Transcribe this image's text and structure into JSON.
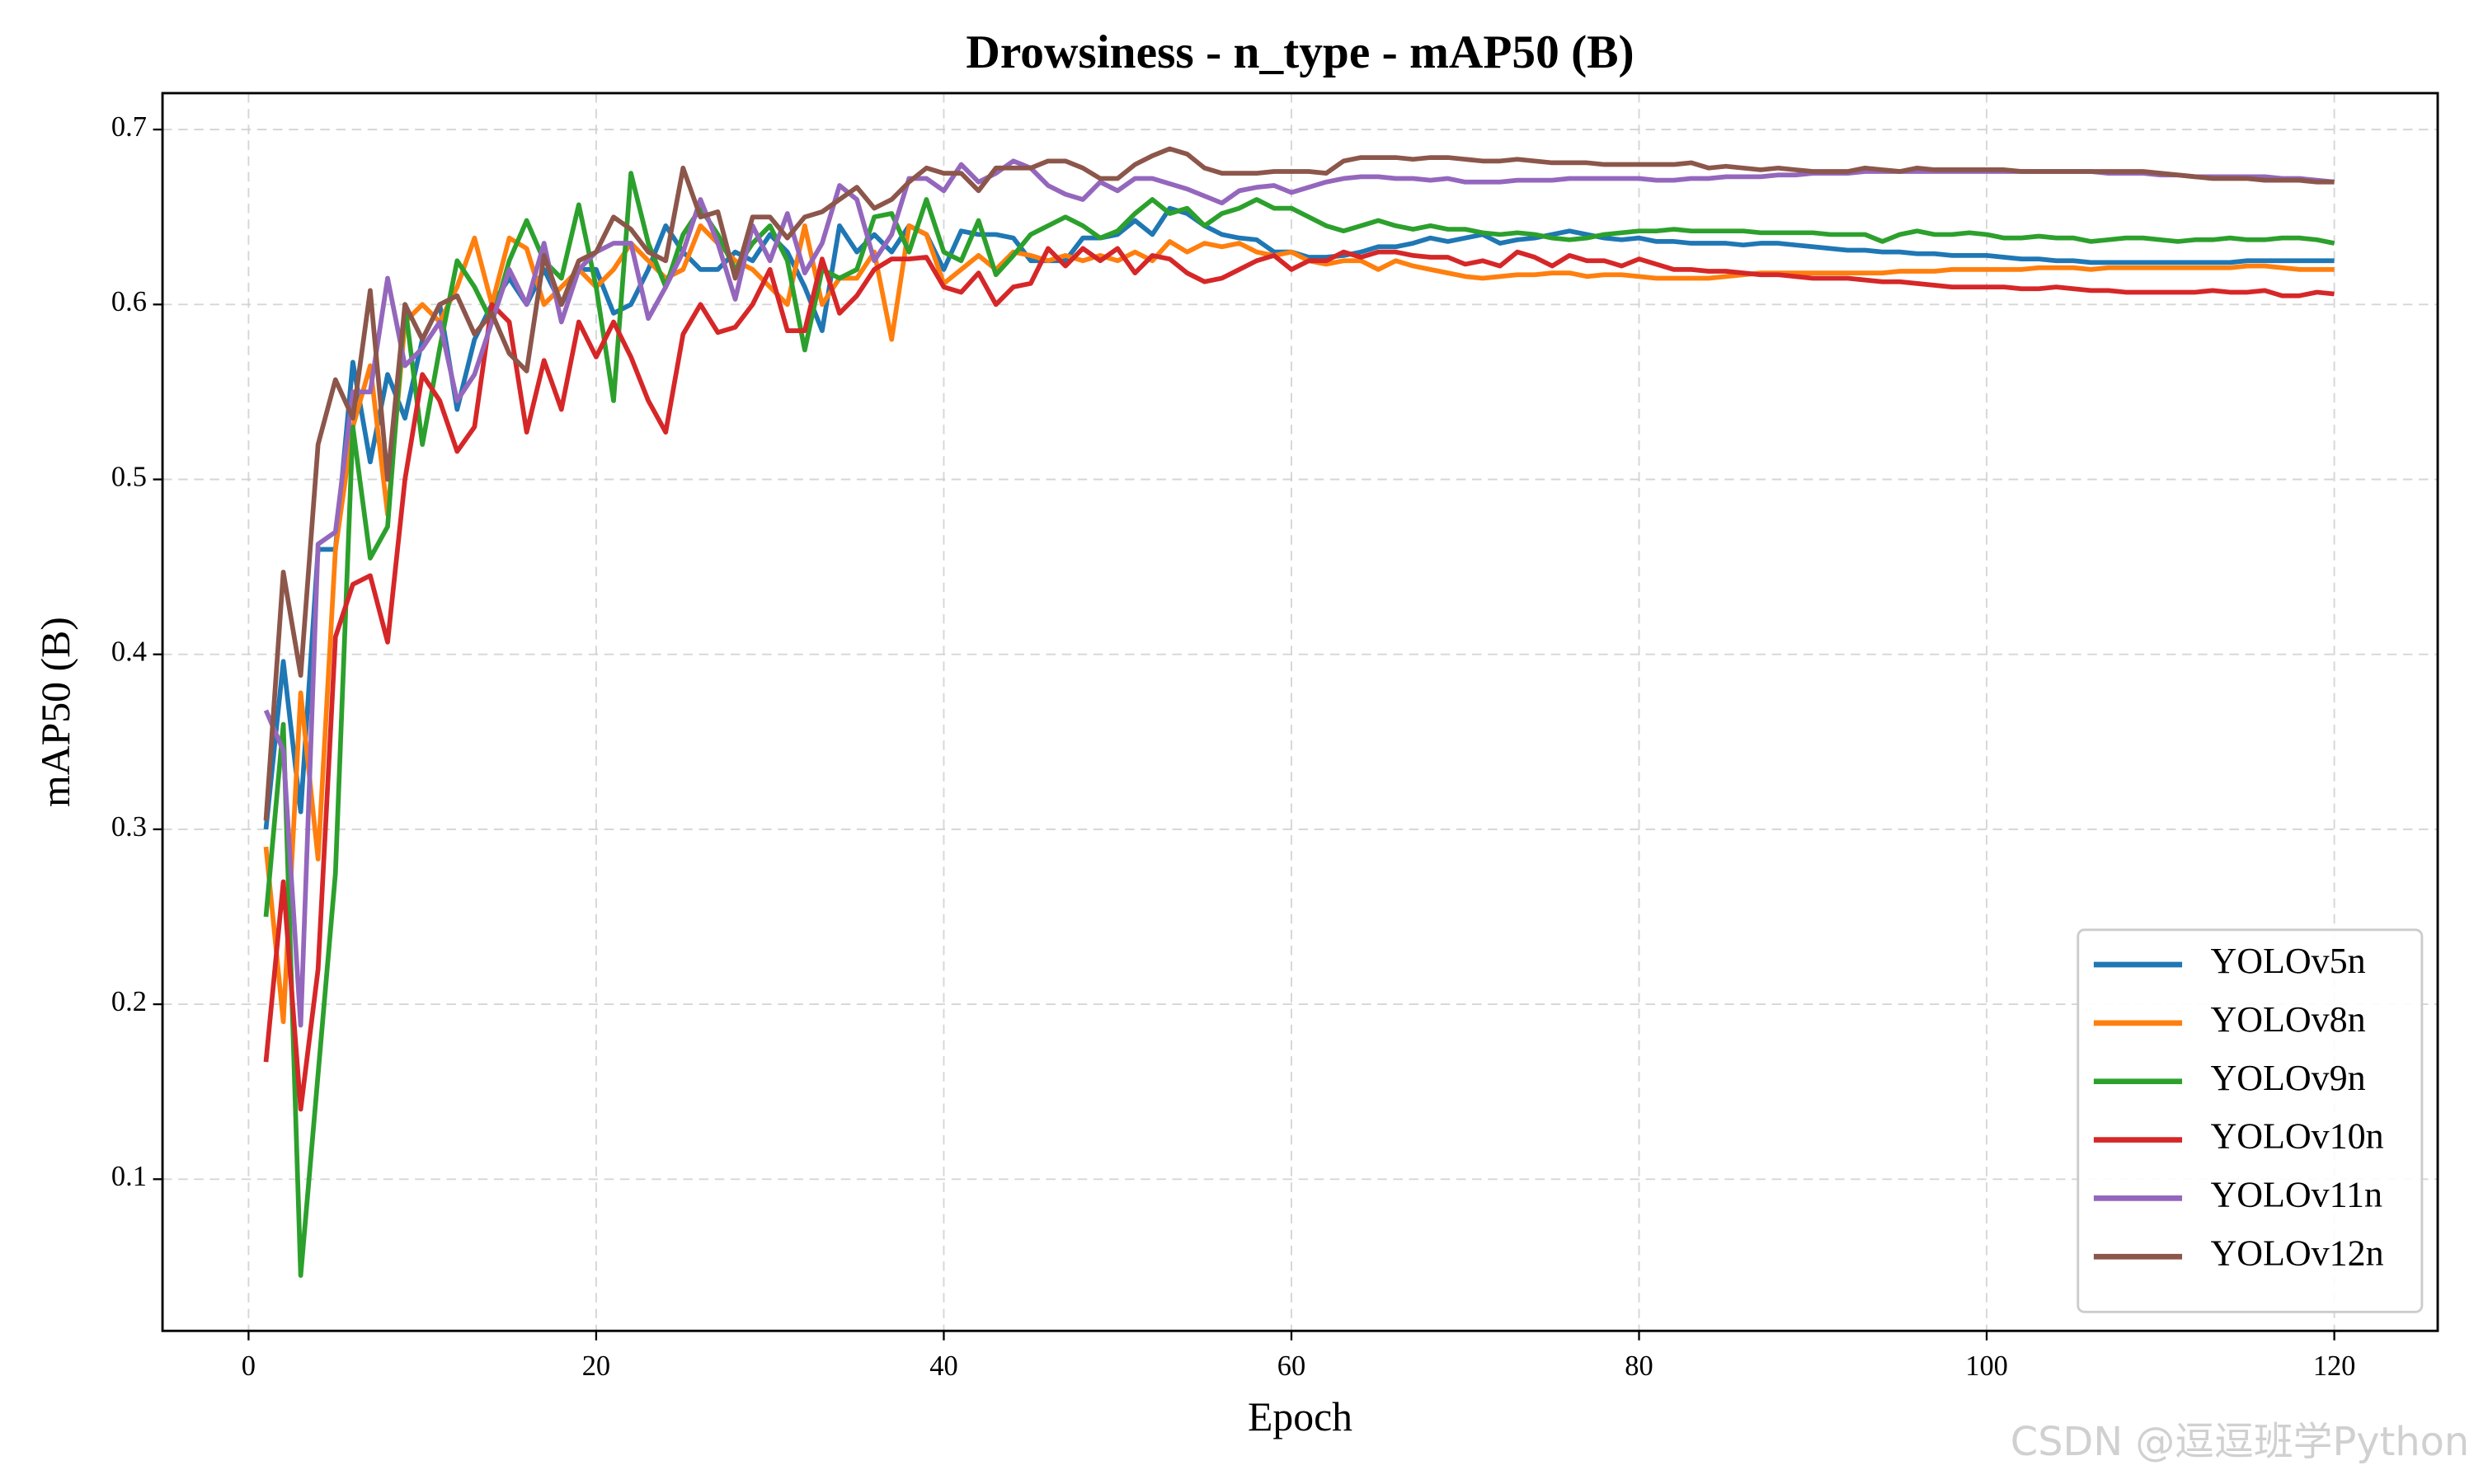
{
  "chart_data": {
    "type": "line",
    "title": "Drowsiness - n_type - mAP50 (B)",
    "x_label": "Epoch",
    "y_label": "mAP50 (B)",
    "watermark": "CSDN @逗逗班学Python",
    "grid": true,
    "legend": "lower right",
    "xlim": [
      -4.95,
      125.95
    ],
    "ylim": [
      0.0133,
      0.7208
    ],
    "xticks": [
      0,
      20,
      40,
      60,
      80,
      100,
      120
    ],
    "yticks": [
      0.1,
      0.2,
      0.3,
      0.4,
      0.5,
      0.6,
      0.7
    ],
    "x": [
      1,
      2,
      3,
      4,
      5,
      6,
      7,
      8,
      9,
      10,
      11,
      12,
      13,
      14,
      15,
      16,
      17,
      18,
      19,
      20,
      21,
      22,
      23,
      24,
      25,
      26,
      27,
      28,
      29,
      30,
      31,
      32,
      33,
      34,
      35,
      36,
      37,
      38,
      39,
      40,
      41,
      42,
      43,
      44,
      45,
      46,
      47,
      48,
      49,
      50,
      51,
      52,
      53,
      54,
      55,
      56,
      57,
      58,
      59,
      60,
      61,
      62,
      63,
      64,
      65,
      66,
      67,
      68,
      69,
      70,
      71,
      72,
      73,
      74,
      75,
      76,
      77,
      78,
      79,
      80,
      81,
      82,
      83,
      84,
      85,
      86,
      87,
      88,
      89,
      90,
      91,
      92,
      93,
      94,
      95,
      96,
      97,
      98,
      99,
      100,
      101,
      102,
      103,
      104,
      105,
      106,
      107,
      108,
      109,
      110,
      111,
      112,
      113,
      114,
      115,
      116,
      117,
      118,
      119,
      120
    ],
    "series": [
      {
        "name": "YOLOv5n",
        "color": "#1f77b4",
        "values": [
          0.3,
          0.396,
          0.31,
          0.46,
          0.46,
          0.567,
          0.51,
          0.56,
          0.535,
          0.58,
          0.6,
          0.54,
          0.58,
          0.6,
          0.615,
          0.6,
          0.62,
          0.6,
          0.62,
          0.62,
          0.595,
          0.6,
          0.62,
          0.645,
          0.63,
          0.62,
          0.62,
          0.63,
          0.625,
          0.64,
          0.63,
          0.61,
          0.585,
          0.645,
          0.63,
          0.64,
          0.63,
          0.645,
          0.64,
          0.62,
          0.642,
          0.64,
          0.64,
          0.638,
          0.625,
          0.625,
          0.625,
          0.638,
          0.638,
          0.64,
          0.648,
          0.64,
          0.655,
          0.652,
          0.645,
          0.64,
          0.638,
          0.637,
          0.63,
          0.63,
          0.627,
          0.627,
          0.628,
          0.63,
          0.633,
          0.633,
          0.635,
          0.638,
          0.636,
          0.638,
          0.64,
          0.635,
          0.637,
          0.638,
          0.64,
          0.642,
          0.64,
          0.638,
          0.637,
          0.638,
          0.636,
          0.636,
          0.635,
          0.635,
          0.635,
          0.634,
          0.635,
          0.635,
          0.634,
          0.633,
          0.632,
          0.631,
          0.631,
          0.63,
          0.63,
          0.629,
          0.629,
          0.628,
          0.628,
          0.628,
          0.627,
          0.626,
          0.626,
          0.625,
          0.625,
          0.624,
          0.624,
          0.624,
          0.624,
          0.624,
          0.624,
          0.624,
          0.624,
          0.624,
          0.625,
          0.625,
          0.625,
          0.625,
          0.625,
          0.625
        ]
      },
      {
        "name": "YOLOv8n",
        "color": "#ff7f0e",
        "values": [
          0.29,
          0.19,
          0.378,
          0.283,
          0.46,
          0.53,
          0.565,
          0.48,
          0.59,
          0.6,
          0.59,
          0.61,
          0.638,
          0.6,
          0.638,
          0.632,
          0.6,
          0.61,
          0.62,
          0.61,
          0.62,
          0.635,
          0.625,
          0.615,
          0.62,
          0.645,
          0.635,
          0.625,
          0.62,
          0.61,
          0.6,
          0.645,
          0.6,
          0.615,
          0.615,
          0.63,
          0.58,
          0.645,
          0.64,
          0.612,
          0.62,
          0.628,
          0.62,
          0.63,
          0.628,
          0.625,
          0.628,
          0.625,
          0.628,
          0.625,
          0.63,
          0.625,
          0.636,
          0.63,
          0.635,
          0.633,
          0.635,
          0.63,
          0.628,
          0.63,
          0.625,
          0.623,
          0.625,
          0.625,
          0.62,
          0.625,
          0.622,
          0.62,
          0.618,
          0.616,
          0.615,
          0.616,
          0.617,
          0.617,
          0.618,
          0.618,
          0.616,
          0.617,
          0.617,
          0.616,
          0.615,
          0.615,
          0.615,
          0.615,
          0.616,
          0.617,
          0.618,
          0.618,
          0.618,
          0.618,
          0.618,
          0.618,
          0.618,
          0.618,
          0.619,
          0.619,
          0.619,
          0.62,
          0.62,
          0.62,
          0.62,
          0.62,
          0.621,
          0.621,
          0.621,
          0.62,
          0.621,
          0.621,
          0.621,
          0.621,
          0.621,
          0.621,
          0.621,
          0.621,
          0.622,
          0.622,
          0.621,
          0.62,
          0.62,
          0.62
        ]
      },
      {
        "name": "YOLOv9n",
        "color": "#2ca02c",
        "values": [
          0.25,
          0.36,
          0.045,
          0.16,
          0.275,
          0.53,
          0.455,
          0.473,
          0.6,
          0.52,
          0.575,
          0.625,
          0.61,
          0.59,
          0.625,
          0.648,
          0.625,
          0.615,
          0.657,
          0.61,
          0.545,
          0.675,
          0.635,
          0.61,
          0.64,
          0.655,
          0.64,
          0.62,
          0.635,
          0.645,
          0.625,
          0.574,
          0.62,
          0.615,
          0.62,
          0.65,
          0.652,
          0.63,
          0.66,
          0.63,
          0.625,
          0.648,
          0.617,
          0.628,
          0.64,
          0.645,
          0.65,
          0.645,
          0.638,
          0.642,
          0.652,
          0.66,
          0.652,
          0.655,
          0.645,
          0.652,
          0.655,
          0.66,
          0.655,
          0.655,
          0.65,
          0.645,
          0.642,
          0.645,
          0.648,
          0.645,
          0.643,
          0.645,
          0.643,
          0.643,
          0.641,
          0.64,
          0.641,
          0.64,
          0.638,
          0.637,
          0.638,
          0.64,
          0.641,
          0.642,
          0.642,
          0.643,
          0.642,
          0.642,
          0.642,
          0.642,
          0.641,
          0.641,
          0.641,
          0.641,
          0.64,
          0.64,
          0.64,
          0.636,
          0.64,
          0.642,
          0.64,
          0.64,
          0.641,
          0.64,
          0.638,
          0.638,
          0.639,
          0.638,
          0.638,
          0.636,
          0.637,
          0.638,
          0.638,
          0.637,
          0.636,
          0.637,
          0.637,
          0.638,
          0.637,
          0.637,
          0.638,
          0.638,
          0.637,
          0.635
        ]
      },
      {
        "name": "YOLOv10n",
        "color": "#d62728",
        "values": [
          0.167,
          0.27,
          0.14,
          0.22,
          0.41,
          0.44,
          0.445,
          0.407,
          0.5,
          0.56,
          0.545,
          0.516,
          0.53,
          0.6,
          0.59,
          0.527,
          0.568,
          0.54,
          0.59,
          0.57,
          0.59,
          0.57,
          0.545,
          0.527,
          0.583,
          0.6,
          0.584,
          0.587,
          0.6,
          0.62,
          0.585,
          0.585,
          0.626,
          0.595,
          0.605,
          0.62,
          0.626,
          0.626,
          0.627,
          0.61,
          0.607,
          0.618,
          0.6,
          0.61,
          0.612,
          0.632,
          0.622,
          0.632,
          0.625,
          0.632,
          0.618,
          0.628,
          0.626,
          0.618,
          0.613,
          0.615,
          0.62,
          0.625,
          0.628,
          0.62,
          0.625,
          0.625,
          0.63,
          0.627,
          0.63,
          0.63,
          0.628,
          0.627,
          0.627,
          0.623,
          0.625,
          0.622,
          0.63,
          0.627,
          0.622,
          0.628,
          0.625,
          0.625,
          0.622,
          0.626,
          0.623,
          0.62,
          0.62,
          0.619,
          0.619,
          0.618,
          0.617,
          0.617,
          0.616,
          0.615,
          0.615,
          0.615,
          0.614,
          0.613,
          0.613,
          0.612,
          0.611,
          0.61,
          0.61,
          0.61,
          0.61,
          0.609,
          0.609,
          0.61,
          0.609,
          0.608,
          0.608,
          0.607,
          0.607,
          0.607,
          0.607,
          0.607,
          0.608,
          0.607,
          0.607,
          0.608,
          0.605,
          0.605,
          0.607,
          0.606
        ]
      },
      {
        "name": "YOLOv11n",
        "color": "#9467bd",
        "values": [
          0.368,
          0.345,
          0.188,
          0.463,
          0.47,
          0.55,
          0.55,
          0.615,
          0.565,
          0.575,
          0.59,
          0.545,
          0.56,
          0.59,
          0.62,
          0.6,
          0.635,
          0.59,
          0.62,
          0.63,
          0.635,
          0.635,
          0.592,
          0.61,
          0.63,
          0.66,
          0.635,
          0.603,
          0.645,
          0.625,
          0.652,
          0.618,
          0.635,
          0.668,
          0.66,
          0.625,
          0.64,
          0.672,
          0.672,
          0.665,
          0.68,
          0.67,
          0.675,
          0.682,
          0.678,
          0.668,
          0.663,
          0.66,
          0.67,
          0.665,
          0.672,
          0.672,
          0.669,
          0.666,
          0.662,
          0.658,
          0.665,
          0.667,
          0.668,
          0.664,
          0.667,
          0.67,
          0.672,
          0.673,
          0.673,
          0.672,
          0.672,
          0.671,
          0.672,
          0.67,
          0.67,
          0.67,
          0.671,
          0.671,
          0.671,
          0.672,
          0.672,
          0.672,
          0.672,
          0.672,
          0.671,
          0.671,
          0.672,
          0.672,
          0.673,
          0.673,
          0.673,
          0.674,
          0.674,
          0.675,
          0.675,
          0.675,
          0.676,
          0.676,
          0.676,
          0.676,
          0.676,
          0.676,
          0.676,
          0.676,
          0.676,
          0.676,
          0.676,
          0.676,
          0.676,
          0.676,
          0.675,
          0.675,
          0.675,
          0.674,
          0.674,
          0.673,
          0.673,
          0.673,
          0.673,
          0.673,
          0.672,
          0.672,
          0.671,
          0.67
        ]
      },
      {
        "name": "YOLOv12n",
        "color": "#8c564b",
        "values": [
          0.305,
          0.447,
          0.388,
          0.52,
          0.557,
          0.535,
          0.608,
          0.5,
          0.6,
          0.58,
          0.6,
          0.605,
          0.583,
          0.595,
          0.572,
          0.562,
          0.628,
          0.6,
          0.625,
          0.63,
          0.65,
          0.643,
          0.63,
          0.625,
          0.678,
          0.65,
          0.653,
          0.615,
          0.65,
          0.65,
          0.638,
          0.65,
          0.653,
          0.66,
          0.667,
          0.655,
          0.66,
          0.67,
          0.678,
          0.675,
          0.675,
          0.665,
          0.678,
          0.678,
          0.678,
          0.682,
          0.682,
          0.678,
          0.672,
          0.672,
          0.68,
          0.685,
          0.689,
          0.686,
          0.678,
          0.675,
          0.675,
          0.675,
          0.676,
          0.676,
          0.676,
          0.675,
          0.682,
          0.684,
          0.684,
          0.684,
          0.683,
          0.684,
          0.684,
          0.683,
          0.682,
          0.682,
          0.683,
          0.682,
          0.681,
          0.681,
          0.681,
          0.68,
          0.68,
          0.68,
          0.68,
          0.68,
          0.681,
          0.678,
          0.679,
          0.678,
          0.677,
          0.678,
          0.677,
          0.676,
          0.676,
          0.676,
          0.678,
          0.677,
          0.676,
          0.678,
          0.677,
          0.677,
          0.677,
          0.677,
          0.677,
          0.676,
          0.676,
          0.676,
          0.676,
          0.676,
          0.676,
          0.676,
          0.676,
          0.675,
          0.674,
          0.673,
          0.672,
          0.672,
          0.672,
          0.671,
          0.671,
          0.671,
          0.67,
          0.67
        ]
      }
    ]
  }
}
